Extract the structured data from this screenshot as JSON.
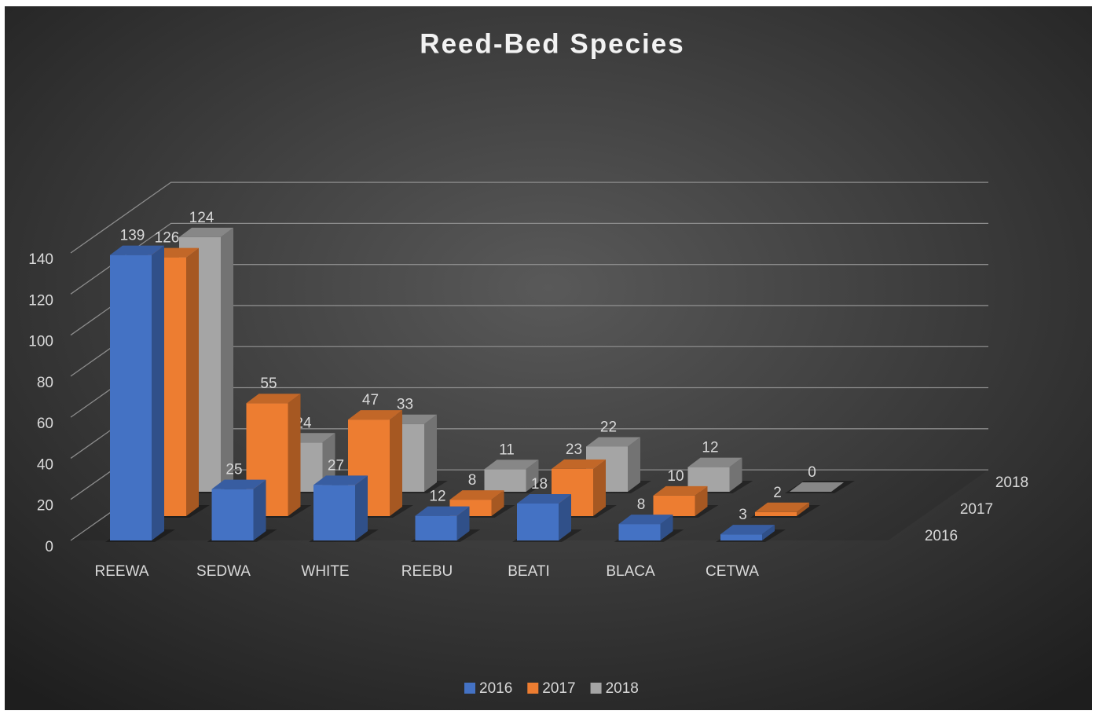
{
  "chart_data": {
    "type": "bar3d",
    "title": "Reed-Bed Species",
    "categories": [
      "REEWA",
      "SEDWA",
      "WHITE",
      "REEBU",
      "BEATI",
      "BLACA",
      "CETWA"
    ],
    "series": [
      {
        "name": "2016",
        "color": "#4472c4",
        "values": [
          139,
          25,
          27,
          12,
          18,
          8,
          3
        ]
      },
      {
        "name": "2017",
        "color": "#ed7d31",
        "values": [
          126,
          55,
          47,
          8,
          23,
          10,
          2
        ]
      },
      {
        "name": "2018",
        "color": "#a5a5a5",
        "values": [
          124,
          24,
          33,
          11,
          22,
          12,
          0
        ]
      }
    ],
    "ylim": [
      0,
      140
    ],
    "yticks": [
      0,
      20,
      40,
      60,
      80,
      100,
      120,
      140
    ],
    "grid": true,
    "legend": "bottom"
  }
}
